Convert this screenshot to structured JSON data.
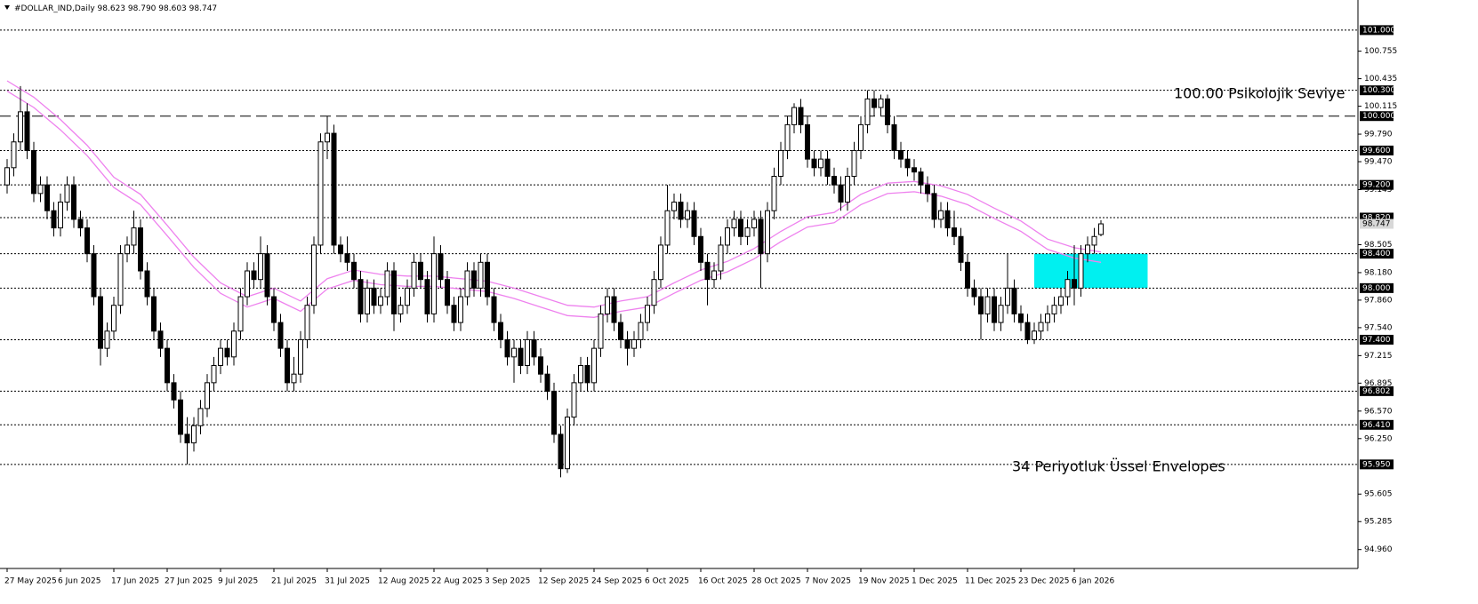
{
  "chart_data": {
    "type": "candlestick",
    "header": {
      "symbol": "#DOLLAR_IND,Daily",
      "open": "98.623",
      "high": "98.790",
      "low": "98.603",
      "close": "98.747"
    },
    "ylim": [
      94.74,
      101.35
    ],
    "yticks": [
      100.755,
      100.435,
      100.115,
      {
        "value": 99.79,
        "label": "99.790"
      },
      {
        "value": 99.47,
        "label": "99.470"
      },
      99.145,
      98.505,
      {
        "value": 98.18,
        "label": "98.180"
      },
      {
        "value": 97.86,
        "label": "97.860"
      },
      {
        "value": 97.54,
        "label": "97.540"
      },
      97.215,
      96.895,
      {
        "value": 96.57,
        "label": "96.570"
      },
      {
        "value": 96.25,
        "label": "96.250"
      },
      95.605,
      95.285,
      {
        "value": 94.96,
        "label": "94.960"
      }
    ],
    "levels": [
      {
        "value": 101,
        "label": "101.000"
      },
      {
        "value": 100.3,
        "label": "100.300"
      },
      {
        "value": 99.6,
        "label": "99.600"
      },
      {
        "value": 99.2,
        "label": "99.200"
      },
      {
        "value": 98.82,
        "label": "98.820"
      },
      {
        "value": 98.4,
        "label": "98.400"
      },
      {
        "value": 98,
        "label": "98.000"
      },
      {
        "value": 97.4,
        "label": "97.400"
      },
      96.802,
      {
        "value": 96.41,
        "label": "96.410"
      },
      {
        "value": 95.95,
        "label": "95.950"
      }
    ],
    "psych_level": {
      "value": 100,
      "label": "100.000"
    },
    "last_price": 98.747,
    "candle_colors": {
      "up": "#ffffff",
      "down": "#000000",
      "outline": "#000000"
    },
    "categories": [
      "27 May 2025",
      null,
      null,
      null,
      null,
      null,
      null,
      null,
      "6 Jun 2025",
      null,
      null,
      null,
      null,
      null,
      null,
      null,
      "17 Jun 2025",
      null,
      null,
      null,
      null,
      null,
      null,
      null,
      "27 Jun 2025",
      null,
      null,
      null,
      null,
      null,
      null,
      null,
      "9 Jul 2025",
      null,
      null,
      null,
      null,
      null,
      null,
      null,
      "21 Jul 2025",
      null,
      null,
      null,
      null,
      null,
      null,
      null,
      "31 Jul 2025",
      null,
      null,
      null,
      null,
      null,
      null,
      null,
      "12 Aug 2025",
      null,
      null,
      null,
      null,
      null,
      null,
      null,
      "22 Aug 2025",
      null,
      null,
      null,
      null,
      null,
      null,
      null,
      "3 Sep 2025",
      null,
      null,
      null,
      null,
      null,
      null,
      null,
      "12 Sep 2025",
      null,
      null,
      null,
      null,
      null,
      null,
      null,
      "24 Sep 2025",
      null,
      null,
      null,
      null,
      null,
      null,
      null,
      "6 Oct 2025",
      null,
      null,
      null,
      null,
      null,
      null,
      null,
      "16 Oct 2025",
      null,
      null,
      null,
      null,
      null,
      null,
      null,
      "28 Oct 2025",
      null,
      null,
      null,
      null,
      null,
      null,
      null,
      "7 Nov 2025",
      null,
      null,
      null,
      null,
      null,
      null,
      null,
      "19 Nov 2025",
      null,
      null,
      null,
      null,
      null,
      null,
      null,
      "1 Dec 2025",
      null,
      null,
      null,
      null,
      null,
      null,
      null,
      "11 Dec 2025",
      null,
      null,
      null,
      null,
      null,
      null,
      null,
      "23 Dec 2025",
      null,
      null,
      null,
      null,
      null,
      null,
      null,
      "6 Jan 2026",
      null,
      null,
      null,
      null
    ],
    "candles": [
      [
        99.2,
        99.5,
        99.1,
        99.4
      ],
      [
        99.4,
        99.8,
        99.3,
        99.7
      ],
      [
        99.7,
        100.35,
        99.6,
        100.05
      ],
      [
        100.05,
        100.15,
        99.5,
        99.6
      ],
      [
        99.6,
        99.7,
        99.0,
        99.1
      ],
      [
        99.1,
        99.3,
        99.0,
        99.2
      ],
      [
        99.2,
        99.3,
        98.8,
        98.9
      ],
      [
        98.9,
        99.0,
        98.6,
        98.7
      ],
      [
        98.7,
        99.1,
        98.6,
        99.0
      ],
      [
        99.0,
        99.3,
        98.9,
        99.2
      ],
      [
        99.2,
        99.3,
        98.7,
        98.8
      ],
      [
        98.8,
        98.9,
        98.6,
        98.7
      ],
      [
        98.7,
        98.8,
        98.3,
        98.4
      ],
      [
        98.4,
        98.5,
        97.8,
        97.9
      ],
      [
        97.9,
        98.0,
        97.1,
        97.3
      ],
      [
        97.3,
        97.6,
        97.2,
        97.5
      ],
      [
        97.5,
        97.9,
        97.4,
        97.8
      ],
      [
        97.8,
        98.5,
        97.7,
        98.4
      ],
      [
        98.4,
        98.6,
        98.3,
        98.5
      ],
      [
        98.5,
        98.9,
        98.4,
        98.7
      ],
      [
        98.7,
        98.8,
        98.1,
        98.2
      ],
      [
        98.2,
        98.3,
        97.8,
        97.9
      ],
      [
        97.9,
        98.0,
        97.4,
        97.5
      ],
      [
        97.5,
        97.6,
        97.2,
        97.3
      ],
      [
        97.3,
        97.4,
        96.8,
        96.9
      ],
      [
        96.9,
        97.0,
        96.6,
        96.7
      ],
      [
        96.7,
        96.8,
        96.2,
        96.3
      ],
      [
        96.3,
        96.5,
        95.95,
        96.2
      ],
      [
        96.2,
        96.5,
        96.1,
        96.4
      ],
      [
        96.4,
        96.7,
        96.3,
        96.6
      ],
      [
        96.6,
        97.0,
        96.5,
        96.9
      ],
      [
        96.9,
        97.2,
        96.8,
        97.1
      ],
      [
        97.1,
        97.4,
        97.0,
        97.3
      ],
      [
        97.3,
        97.4,
        97.1,
        97.2
      ],
      [
        97.2,
        97.6,
        97.1,
        97.5
      ],
      [
        97.5,
        98.0,
        97.4,
        97.9
      ],
      [
        97.9,
        98.3,
        97.8,
        98.2
      ],
      [
        98.2,
        98.3,
        98.0,
        98.1
      ],
      [
        98.1,
        98.6,
        98.0,
        98.4
      ],
      [
        98.4,
        98.5,
        97.8,
        97.9
      ],
      [
        97.9,
        98.0,
        97.5,
        97.6
      ],
      [
        97.6,
        97.7,
        97.2,
        97.3
      ],
      [
        97.3,
        97.4,
        96.8,
        96.9
      ],
      [
        96.9,
        97.2,
        96.8,
        97.0
      ],
      [
        97.0,
        97.5,
        96.9,
        97.4
      ],
      [
        97.4,
        97.9,
        97.3,
        97.8
      ],
      [
        97.8,
        98.6,
        97.7,
        98.5
      ],
      [
        98.5,
        99.8,
        98.4,
        99.7
      ],
      [
        99.7,
        100.0,
        99.5,
        99.8
      ],
      [
        99.8,
        99.9,
        98.4,
        98.5
      ],
      [
        98.5,
        98.6,
        98.3,
        98.4
      ],
      [
        98.4,
        98.6,
        98.2,
        98.3
      ],
      [
        98.3,
        98.4,
        98.0,
        98.1
      ],
      [
        98.1,
        98.2,
        97.6,
        97.7
      ],
      [
        97.7,
        98.1,
        97.6,
        98.0
      ],
      [
        98.0,
        98.1,
        97.7,
        97.8
      ],
      [
        97.8,
        98.0,
        97.7,
        97.9
      ],
      [
        97.9,
        98.3,
        97.8,
        98.2
      ],
      [
        98.2,
        98.3,
        97.5,
        97.7
      ],
      [
        97.7,
        97.9,
        97.6,
        97.8
      ],
      [
        97.8,
        98.1,
        97.7,
        98.0
      ],
      [
        98.0,
        98.4,
        97.9,
        98.3
      ],
      [
        98.3,
        98.4,
        98.0,
        98.1
      ],
      [
        98.1,
        98.2,
        97.6,
        97.7
      ],
      [
        97.7,
        98.6,
        97.6,
        98.4
      ],
      [
        98.4,
        98.5,
        98.0,
        98.1
      ],
      [
        98.1,
        98.2,
        97.7,
        97.8
      ],
      [
        97.8,
        97.9,
        97.5,
        97.6
      ],
      [
        97.6,
        98.0,
        97.5,
        97.9
      ],
      [
        97.9,
        98.3,
        97.8,
        98.2
      ],
      [
        98.2,
        98.3,
        97.9,
        98.0
      ],
      [
        98.0,
        98.4,
        97.9,
        98.3
      ],
      [
        98.3,
        98.4,
        97.8,
        97.9
      ],
      [
        97.9,
        98.0,
        97.5,
        97.6
      ],
      [
        97.6,
        97.7,
        97.3,
        97.4
      ],
      [
        97.4,
        97.5,
        97.1,
        97.2
      ],
      [
        97.2,
        97.4,
        96.9,
        97.3
      ],
      [
        97.3,
        97.4,
        97.0,
        97.1
      ],
      [
        97.1,
        97.5,
        97.0,
        97.4
      ],
      [
        97.4,
        97.5,
        97.1,
        97.2
      ],
      [
        97.2,
        97.3,
        96.9,
        97.0
      ],
      [
        97.0,
        97.1,
        96.7,
        96.8
      ],
      [
        96.8,
        96.9,
        96.2,
        96.3
      ],
      [
        96.3,
        96.4,
        95.8,
        95.9
      ],
      [
        95.9,
        96.6,
        95.85,
        96.5
      ],
      [
        96.5,
        97.0,
        96.4,
        96.9
      ],
      [
        96.9,
        97.2,
        96.8,
        97.1
      ],
      [
        97.1,
        97.2,
        96.8,
        96.9
      ],
      [
        96.9,
        97.4,
        96.8,
        97.3
      ],
      [
        97.3,
        97.8,
        97.2,
        97.7
      ],
      [
        97.7,
        98.0,
        97.6,
        97.9
      ],
      [
        97.9,
        98.0,
        97.5,
        97.6
      ],
      [
        97.6,
        97.7,
        97.3,
        97.4
      ],
      [
        97.4,
        97.5,
        97.1,
        97.3
      ],
      [
        97.3,
        97.5,
        97.2,
        97.4
      ],
      [
        97.4,
        97.7,
        97.3,
        97.6
      ],
      [
        97.6,
        97.9,
        97.5,
        97.8
      ],
      [
        97.8,
        98.2,
        97.7,
        98.1
      ],
      [
        98.1,
        98.6,
        98.0,
        98.5
      ],
      [
        98.5,
        99.2,
        98.4,
        98.9
      ],
      [
        98.9,
        99.1,
        98.8,
        99.0
      ],
      [
        99.0,
        99.1,
        98.7,
        98.8
      ],
      [
        98.8,
        99.0,
        98.7,
        98.9
      ],
      [
        98.9,
        99.0,
        98.5,
        98.6
      ],
      [
        98.6,
        98.7,
        98.2,
        98.3
      ],
      [
        98.3,
        98.4,
        97.8,
        98.1
      ],
      [
        98.1,
        98.3,
        98.0,
        98.2
      ],
      [
        98.2,
        98.6,
        98.1,
        98.5
      ],
      [
        98.5,
        98.8,
        98.4,
        98.7
      ],
      [
        98.7,
        98.9,
        98.6,
        98.8
      ],
      [
        98.8,
        98.9,
        98.5,
        98.6
      ],
      [
        98.6,
        98.8,
        98.5,
        98.7
      ],
      [
        98.7,
        98.9,
        98.6,
        98.8
      ],
      [
        98.8,
        98.9,
        98.0,
        98.4
      ],
      [
        98.4,
        99.0,
        98.3,
        98.9
      ],
      [
        98.9,
        99.4,
        98.8,
        99.3
      ],
      [
        99.3,
        99.7,
        99.2,
        99.6
      ],
      [
        99.6,
        100.0,
        99.5,
        99.9
      ],
      [
        99.9,
        100.15,
        99.8,
        100.1
      ],
      [
        100.1,
        100.2,
        99.8,
        99.9
      ],
      [
        99.9,
        100.0,
        99.4,
        99.5
      ],
      [
        99.5,
        99.6,
        99.3,
        99.4
      ],
      [
        99.4,
        99.6,
        99.3,
        99.5
      ],
      [
        99.5,
        99.6,
        99.2,
        99.3
      ],
      [
        99.3,
        99.4,
        99.1,
        99.2
      ],
      [
        99.2,
        99.3,
        98.9,
        99.0
      ],
      [
        99.0,
        99.4,
        98.9,
        99.3
      ],
      [
        99.3,
        99.7,
        99.2,
        99.6
      ],
      [
        99.6,
        100.0,
        99.5,
        99.9
      ],
      [
        99.9,
        100.3,
        99.8,
        100.2
      ],
      [
        100.2,
        100.3,
        100.0,
        100.1
      ],
      [
        100.1,
        100.25,
        100.0,
        100.2
      ],
      [
        100.2,
        100.25,
        99.8,
        99.9
      ],
      [
        99.9,
        100.0,
        99.5,
        99.6
      ],
      [
        99.6,
        99.7,
        99.4,
        99.5
      ],
      [
        99.5,
        99.6,
        99.3,
        99.4
      ],
      [
        99.4,
        99.5,
        99.25,
        99.35
      ],
      [
        99.35,
        99.4,
        99.1,
        99.2
      ],
      [
        99.2,
        99.3,
        99.0,
        99.1
      ],
      [
        99.1,
        99.2,
        98.7,
        98.8
      ],
      [
        98.8,
        99.0,
        98.7,
        98.9
      ],
      [
        98.9,
        99.0,
        98.6,
        98.7
      ],
      [
        98.7,
        98.9,
        98.5,
        98.6
      ],
      [
        98.6,
        98.7,
        98.2,
        98.3
      ],
      [
        98.3,
        98.4,
        97.9,
        98.0
      ],
      [
        98.0,
        98.1,
        97.8,
        97.9
      ],
      [
        97.9,
        98.0,
        97.4,
        97.7
      ],
      [
        97.7,
        98.0,
        97.6,
        97.9
      ],
      [
        97.9,
        98.0,
        97.5,
        97.6
      ],
      [
        97.6,
        97.9,
        97.5,
        97.8
      ],
      [
        97.8,
        98.4,
        97.7,
        98.0
      ],
      [
        98.0,
        98.1,
        97.6,
        97.7
      ],
      [
        97.7,
        97.8,
        97.5,
        97.6
      ],
      [
        97.6,
        97.7,
        97.35,
        97.4
      ],
      [
        97.4,
        97.6,
        97.35,
        97.5
      ],
      [
        97.5,
        97.7,
        97.4,
        97.6
      ],
      [
        97.6,
        97.8,
        97.5,
        97.7
      ],
      [
        97.7,
        97.9,
        97.6,
        97.8
      ],
      [
        97.8,
        98.0,
        97.7,
        97.9
      ],
      [
        97.9,
        98.2,
        97.8,
        98.1
      ],
      [
        98.1,
        98.5,
        97.8,
        98.0
      ],
      [
        98.0,
        98.5,
        97.9,
        98.4
      ],
      [
        98.4,
        98.6,
        98.3,
        98.5
      ],
      [
        98.5,
        98.7,
        98.4,
        98.6
      ],
      [
        98.623,
        98.79,
        98.603,
        98.747
      ]
    ],
    "envelope": {
      "color": "#ee82ee",
      "x": [
        0,
        4,
        8,
        12,
        16,
        20,
        24,
        28,
        32,
        36,
        40,
        44,
        48,
        52,
        56,
        60,
        64,
        68,
        72,
        76,
        80,
        84,
        88,
        92,
        96,
        100,
        104,
        108,
        112,
        116,
        120,
        124,
        128,
        132,
        136,
        140,
        144,
        148,
        152,
        156,
        160,
        164
      ],
      "upper": [
        100.41,
        100.22,
        99.96,
        99.66,
        99.29,
        99.09,
        98.73,
        98.36,
        98.06,
        97.9,
        98.0,
        97.85,
        98.11,
        98.21,
        98.16,
        98.14,
        98.14,
        98.11,
        98.08,
        98.0,
        97.9,
        97.8,
        97.78,
        97.85,
        97.9,
        98.06,
        98.21,
        98.31,
        98.46,
        98.66,
        98.83,
        98.88,
        99.09,
        99.22,
        99.24,
        99.19,
        99.09,
        98.93,
        98.78,
        98.57,
        98.47,
        98.42
      ],
      "lower": [
        100.29,
        100.1,
        99.84,
        99.54,
        99.17,
        98.97,
        98.61,
        98.24,
        97.94,
        97.78,
        97.88,
        97.73,
        97.99,
        98.09,
        98.04,
        98.02,
        98.02,
        97.99,
        97.96,
        97.88,
        97.78,
        97.68,
        97.66,
        97.73,
        97.78,
        97.94,
        98.09,
        98.19,
        98.34,
        98.54,
        98.71,
        98.76,
        98.97,
        99.1,
        99.12,
        99.07,
        98.97,
        98.81,
        98.66,
        98.45,
        98.35,
        98.3
      ]
    },
    "zone": {
      "start": 154,
      "end": 171,
      "top": 98.4,
      "bottom": 98.0,
      "color": "#00f0f0"
    },
    "annotations": [
      {
        "text": "100.00 Psikolojik Seviye",
        "color": "#000000"
      },
      {
        "text": "34 Periyotluk Üssel Envelopes",
        "color": "#e040e0"
      }
    ]
  }
}
